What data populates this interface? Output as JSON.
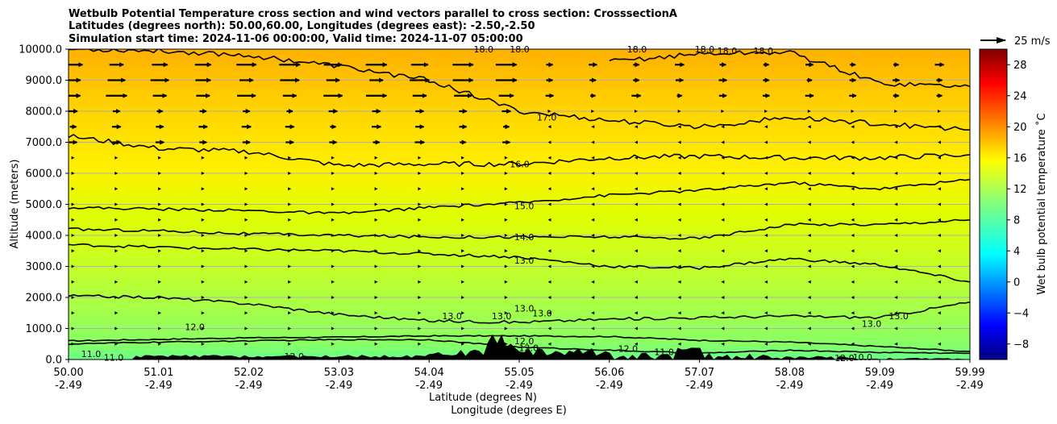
{
  "chart_data": {
    "type": "contour",
    "title_lines": [
      "Wetbulb Potential Temperature cross section and wind vectors parallel to cross section: CrosssectionA",
      "Latitudes (degrees north): 50.00,60.00, Longitudes (degrees east): -2.50,-2.50",
      "Simulation start time: 2024-11-06 00:00:00, Valid time: 2024-11-07 05:00:00"
    ],
    "xlabel_lines": [
      "Latitude (degrees N)",
      "Longitude (degrees E)"
    ],
    "ylabel": "Altitude (meters)",
    "colorbar_label": "Wet bulb potential temperature $^{\\circ}$C",
    "colorbar_label_display": "Wet bulb potential temperature ˚C",
    "colorbar_range": [
      -10,
      30
    ],
    "colorbar_ticks": [
      -8,
      -4,
      0,
      4,
      8,
      12,
      16,
      20,
      24,
      28
    ],
    "colormap": "jet",
    "quiver_key": "25 m/s",
    "xlim": [
      50.0,
      59.99
    ],
    "ylim": [
      0,
      10000
    ],
    "x_ticks": [
      {
        "lat": "50.00",
        "lon": "-2.49"
      },
      {
        "lat": "51.01",
        "lon": "-2.49"
      },
      {
        "lat": "52.02",
        "lon": "-2.49"
      },
      {
        "lat": "53.03",
        "lon": "-2.49"
      },
      {
        "lat": "54.04",
        "lon": "-2.49"
      },
      {
        "lat": "55.05",
        "lon": "-2.49"
      },
      {
        "lat": "56.06",
        "lon": "-2.49"
      },
      {
        "lat": "57.07",
        "lon": "-2.49"
      },
      {
        "lat": "58.08",
        "lon": "-2.49"
      },
      {
        "lat": "59.09",
        "lon": "-2.49"
      },
      {
        "lat": "59.99",
        "lon": "-2.49"
      }
    ],
    "y_ticks": [
      "0.0",
      "1000.0",
      "2000.0",
      "3000.0",
      "4000.0",
      "5000.0",
      "6000.0",
      "7000.0",
      "8000.0",
      "9000.0",
      "10000.0"
    ],
    "grid_horizontal": true,
    "contours": [
      {
        "level": 11.0,
        "alt": [
          600,
          650,
          700,
          720,
          760,
          760,
          740,
          620,
          560,
          420,
          260
        ]
      },
      {
        "level": 12.0,
        "alt": [
          500,
          560,
          600,
          640,
          640,
          400,
          300,
          200,
          300,
          230,
          200
        ]
      },
      {
        "level": 13.0,
        "alt": [
          2050,
          2000,
          1800,
          1450,
          1250,
          1200,
          1300,
          1350,
          1400,
          1350,
          1850
        ]
      },
      {
        "level": 14.0,
        "alt": [
          3700,
          3620,
          3550,
          3500,
          3400,
          3300,
          3000,
          2950,
          3250,
          3050,
          2500
        ]
      },
      {
        "level": 15.0,
        "alt": [
          4200,
          4150,
          4050,
          4000,
          3950,
          3950,
          3950,
          3900,
          4350,
          4350,
          4500
        ]
      },
      {
        "level": 16.0,
        "alt": [
          4900,
          4850,
          4800,
          4700,
          4900,
          5050,
          5300,
          5450,
          5700,
          5500,
          5800
        ]
      },
      {
        "level": 17.0,
        "alt": [
          7200,
          6800,
          6700,
          6250,
          6300,
          6300,
          6500,
          6550,
          6500,
          6500,
          6600
        ]
      },
      {
        "level": 18.0,
        "alt": [
          10000,
          9950,
          9800,
          9450,
          9000,
          8000,
          7700,
          7500,
          7800,
          7600,
          7400
        ]
      },
      {
        "level": 18.0,
        "alt": [
          null,
          null,
          null,
          null,
          null,
          null,
          9600,
          9850,
          9900,
          8900,
          8800
        ]
      }
    ],
    "contour_labels": [
      {
        "text": "11.0",
        "lat": 50.25,
        "alt": 180
      },
      {
        "text": "11.0",
        "lat": 50.5,
        "alt": 60
      },
      {
        "text": "12.0",
        "lat": 51.4,
        "alt": 1050
      },
      {
        "text": "12.0",
        "lat": 52.5,
        "alt": 100
      },
      {
        "text": "13.0",
        "lat": 54.25,
        "alt": 1400
      },
      {
        "text": "13.0",
        "lat": 54.8,
        "alt": 1400
      },
      {
        "text": "13.0",
        "lat": 55.05,
        "alt": 1650
      },
      {
        "text": "13.0",
        "lat": 55.25,
        "alt": 1500
      },
      {
        "text": "13.0",
        "lat": 55.05,
        "alt": 3200
      },
      {
        "text": "14.0",
        "lat": 55.05,
        "alt": 3950
      },
      {
        "text": "15.0",
        "lat": 55.05,
        "alt": 4950
      },
      {
        "text": "16.0",
        "lat": 55.0,
        "alt": 6300
      },
      {
        "text": "17.0",
        "lat": 55.3,
        "alt": 7800
      },
      {
        "text": "18.0",
        "lat": 54.6,
        "alt": 10000
      },
      {
        "text": "18.0",
        "lat": 55.0,
        "alt": 10000
      },
      {
        "text": "18.0",
        "lat": 56.3,
        "alt": 10000
      },
      {
        "text": "18.0",
        "lat": 57.05,
        "alt": 10000
      },
      {
        "text": "18.0",
        "lat": 57.3,
        "alt": 9950
      },
      {
        "text": "18.0",
        "lat": 57.7,
        "alt": 9950
      },
      {
        "text": "12.0",
        "lat": 55.05,
        "alt": 600
      },
      {
        "text": "12.0",
        "lat": 55.1,
        "alt": 380
      },
      {
        "text": "10.0",
        "lat": 55.0,
        "alt": 150
      },
      {
        "text": "12.0",
        "lat": 56.2,
        "alt": 350
      },
      {
        "text": "11.0",
        "lat": 56.6,
        "alt": 250
      },
      {
        "text": "12.0",
        "lat": 58.6,
        "alt": 50
      },
      {
        "text": "10.0",
        "lat": 58.8,
        "alt": 80
      },
      {
        "text": "13.0",
        "lat": 58.9,
        "alt": 1150
      },
      {
        "text": "13.0",
        "lat": 59.2,
        "alt": 1400
      }
    ],
    "terrain_peak_m": 850,
    "wind_jet_altitudes_m": [
      8500,
      9500
    ]
  }
}
